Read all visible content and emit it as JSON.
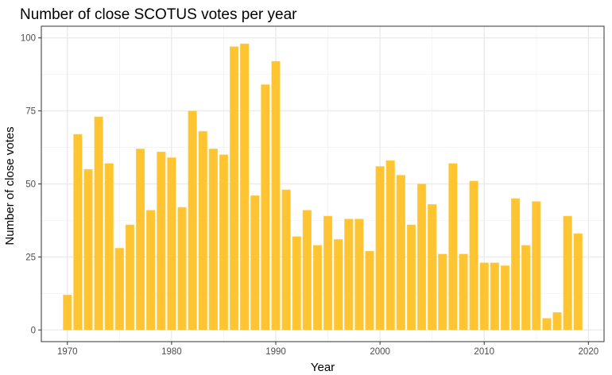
{
  "chart_data": {
    "type": "bar",
    "title": "Number of close SCOTUS votes per year",
    "xlabel": "Year",
    "ylabel": "Number of close votes",
    "x": [
      1970,
      1971,
      1972,
      1973,
      1974,
      1975,
      1976,
      1977,
      1978,
      1979,
      1980,
      1981,
      1982,
      1983,
      1984,
      1985,
      1986,
      1987,
      1988,
      1989,
      1990,
      1991,
      1992,
      1993,
      1994,
      1995,
      1996,
      1997,
      1998,
      1999,
      2000,
      2001,
      2002,
      2003,
      2004,
      2005,
      2006,
      2007,
      2008,
      2009,
      2010,
      2011,
      2012,
      2013,
      2014,
      2015,
      2016,
      2017,
      2018,
      2019
    ],
    "values": [
      12,
      67,
      55,
      73,
      57,
      28,
      36,
      62,
      41,
      61,
      59,
      42,
      75,
      68,
      62,
      60,
      97,
      98,
      46,
      84,
      92,
      48,
      32,
      41,
      29,
      39,
      31,
      38,
      38,
      27,
      56,
      58,
      53,
      36,
      50,
      43,
      26,
      57,
      26,
      51,
      23,
      23,
      22,
      45,
      29,
      44,
      4,
      6,
      39,
      33
    ],
    "xlim": [
      1967.5,
      2021.5
    ],
    "ylim": [
      -4,
      104
    ],
    "xticks": [
      1970,
      1980,
      1990,
      2000,
      2010,
      2020
    ],
    "xtick_labels": [
      "1970",
      "1980",
      "1990",
      "2000",
      "2010",
      "2020"
    ],
    "yticks": [
      0,
      25,
      50,
      75,
      100
    ],
    "ytick_labels": [
      "0",
      "25",
      "50",
      "75",
      "100"
    ],
    "grid": true,
    "legend": "none",
    "colors": {
      "bar": "#ffc432",
      "bar_stroke": "#ffd766",
      "panel_border": "#333333",
      "grid_major": "#ebebeb",
      "grid_minor": "#f5f5f5",
      "tick_text": "#4d4d4d",
      "text": "#000000"
    }
  }
}
